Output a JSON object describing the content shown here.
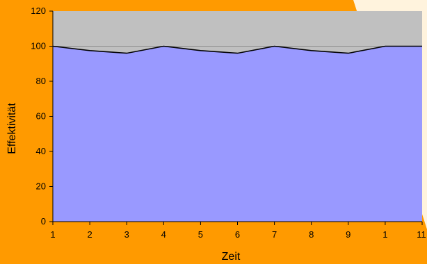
{
  "chart_data": {
    "type": "area",
    "title": "",
    "xlabel": "Zeit",
    "ylabel": "Effektivität",
    "categories": [
      "1",
      "2",
      "3",
      "4",
      "5",
      "6",
      "7",
      "8",
      "9",
      "1",
      "11"
    ],
    "series": [
      {
        "values": [
          100,
          97.5,
          96,
          100,
          97.5,
          96,
          100,
          97.5,
          96,
          100,
          100
        ]
      }
    ],
    "ylim": [
      0,
      120
    ],
    "yticks": [
      "0",
      "20",
      "40",
      "60",
      "80",
      "100",
      "120"
    ],
    "grid": true,
    "colors": {
      "background": "#ff9a00",
      "plot_background": "#c0c0c0",
      "area_fill": "#9999ff",
      "line": "#000000",
      "corner_panel": "#fff3dd"
    }
  }
}
